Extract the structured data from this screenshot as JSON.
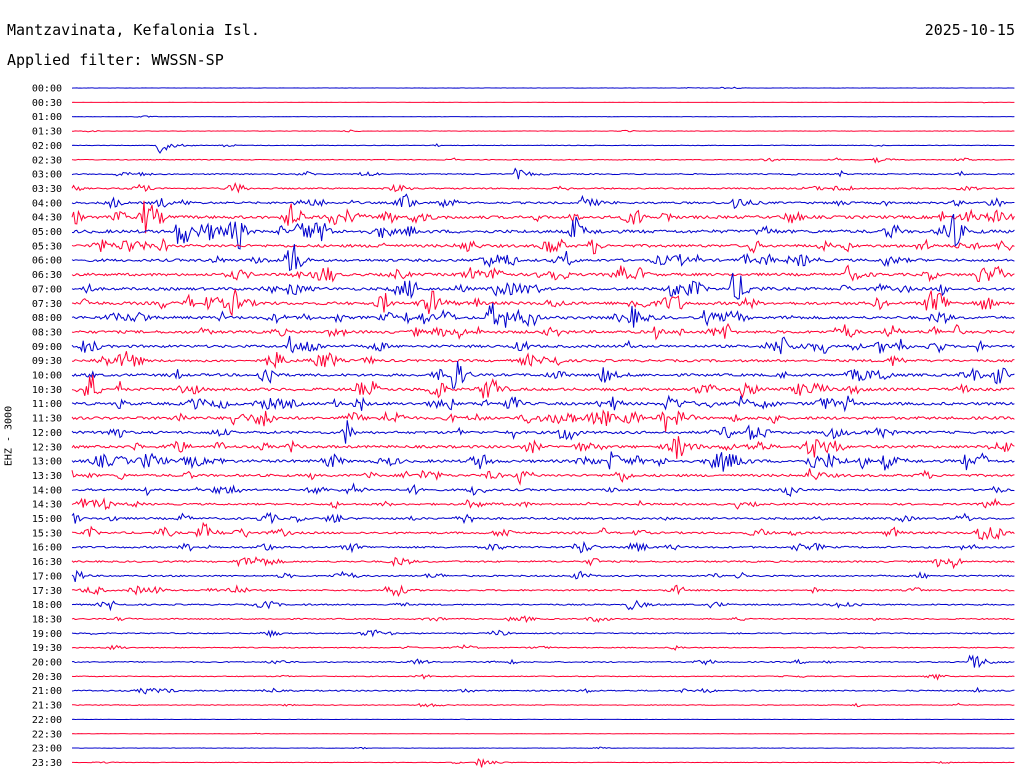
{
  "header": {
    "station": "Mantzavinata, Kefalonia Isl.",
    "date": "2025-10-15",
    "filter": "Applied filter: WWSSN-SP"
  },
  "chart_data": {
    "type": "line",
    "title": "Mantzavinata, Kefalonia Isl.",
    "ylabel": "EHZ - 3000",
    "xlabel": "",
    "grid": false,
    "legend": "none",
    "trace_colors": [
      "#0000cc",
      "#ff0033"
    ],
    "rows": [
      "00:00",
      "00:30",
      "01:00",
      "01:30",
      "02:00",
      "02:30",
      "03:00",
      "03:30",
      "04:00",
      "04:30",
      "05:00",
      "05:30",
      "06:00",
      "06:30",
      "07:00",
      "07:30",
      "08:00",
      "08:30",
      "09:00",
      "09:30",
      "10:00",
      "10:30",
      "11:00",
      "11:30",
      "12:00",
      "12:30",
      "13:00",
      "13:30",
      "14:00",
      "14:30",
      "15:00",
      "15:30",
      "16:00",
      "16:30",
      "17:00",
      "17:30",
      "18:00",
      "18:30",
      "19:00",
      "19:30",
      "20:00",
      "20:30",
      "21:00",
      "21:30",
      "22:00",
      "22:30",
      "23:00",
      "23:30"
    ],
    "noise_level": [
      0.3,
      0.2,
      0.3,
      0.5,
      0.6,
      0.8,
      1.2,
      1.5,
      2.2,
      3.2,
      3.4,
      3.0,
      2.8,
      2.9,
      3.0,
      3.2,
      3.0,
      3.0,
      2.8,
      2.6,
      2.8,
      3.0,
      3.0,
      3.0,
      2.8,
      2.8,
      3.0,
      2.6,
      2.2,
      2.0,
      2.2,
      2.2,
      2.0,
      1.8,
      1.6,
      1.6,
      1.5,
      1.3,
      1.2,
      1.0,
      1.2,
      0.9,
      1.4,
      0.8,
      0.3,
      0.3,
      0.4,
      0.5
    ],
    "events": [
      {
        "row": 0,
        "pos": 0.69,
        "amp": 2
      },
      {
        "row": 4,
        "pos": 0.092,
        "amp": 9
      },
      {
        "row": 5,
        "pos": 0.85,
        "amp": 3
      },
      {
        "row": 6,
        "pos": 0.47,
        "amp": 6
      },
      {
        "row": 8,
        "pos": 0.54,
        "amp": 8
      },
      {
        "row": 8,
        "pos": 0.7,
        "amp": 9
      },
      {
        "row": 9,
        "pos": 0.29,
        "amp": 8
      },
      {
        "row": 9,
        "pos": 0.36,
        "amp": 8
      },
      {
        "row": 10,
        "pos": 0.53,
        "amp": 9
      },
      {
        "row": 10,
        "pos": 0.93,
        "amp": 8
      },
      {
        "row": 12,
        "pos": 0.77,
        "amp": 8
      },
      {
        "row": 12,
        "pos": 0.86,
        "amp": 8
      },
      {
        "row": 13,
        "pos": 0.82,
        "amp": 10
      },
      {
        "row": 13,
        "pos": 0.96,
        "amp": 9
      },
      {
        "row": 14,
        "pos": 0.23,
        "amp": 9
      },
      {
        "row": 14,
        "pos": 0.7,
        "amp": 12
      },
      {
        "row": 15,
        "pos": 0.17,
        "amp": 10
      },
      {
        "row": 15,
        "pos": 0.38,
        "amp": 9
      },
      {
        "row": 16,
        "pos": 0.44,
        "amp": 11
      },
      {
        "row": 16,
        "pos": 0.59,
        "amp": 14
      },
      {
        "row": 16,
        "pos": 0.67,
        "amp": 8
      },
      {
        "row": 18,
        "pos": 0.23,
        "amp": 10
      },
      {
        "row": 18,
        "pos": 0.75,
        "amp": 9
      },
      {
        "row": 20,
        "pos": 0.56,
        "amp": 10
      },
      {
        "row": 21,
        "pos": 0.71,
        "amp": 10
      },
      {
        "row": 22,
        "pos": 0.63,
        "amp": 12
      },
      {
        "row": 23,
        "pos": 0.17,
        "amp": 9
      },
      {
        "row": 24,
        "pos": 0.8,
        "amp": 10
      },
      {
        "row": 25,
        "pos": 0.64,
        "amp": 12
      },
      {
        "row": 26,
        "pos": 0.57,
        "amp": 11
      },
      {
        "row": 26,
        "pos": 0.69,
        "amp": 9
      },
      {
        "row": 26,
        "pos": 0.8,
        "amp": 9
      },
      {
        "row": 26,
        "pos": 0.86,
        "amp": 9
      },
      {
        "row": 27,
        "pos": 0.78,
        "amp": 8
      },
      {
        "row": 29,
        "pos": 0.42,
        "amp": 6
      },
      {
        "row": 31,
        "pos": 0.14,
        "amp": 6
      },
      {
        "row": 31,
        "pos": 0.96,
        "amp": 7
      },
      {
        "row": 35,
        "pos": 0.33,
        "amp": 6
      },
      {
        "row": 36,
        "pos": 0.59,
        "amp": 7
      },
      {
        "row": 40,
        "pos": 0.95,
        "amp": 14
      },
      {
        "row": 43,
        "pos": 0.37,
        "amp": 4
      },
      {
        "row": 47,
        "pos": 0.43,
        "amp": 7
      }
    ]
  }
}
